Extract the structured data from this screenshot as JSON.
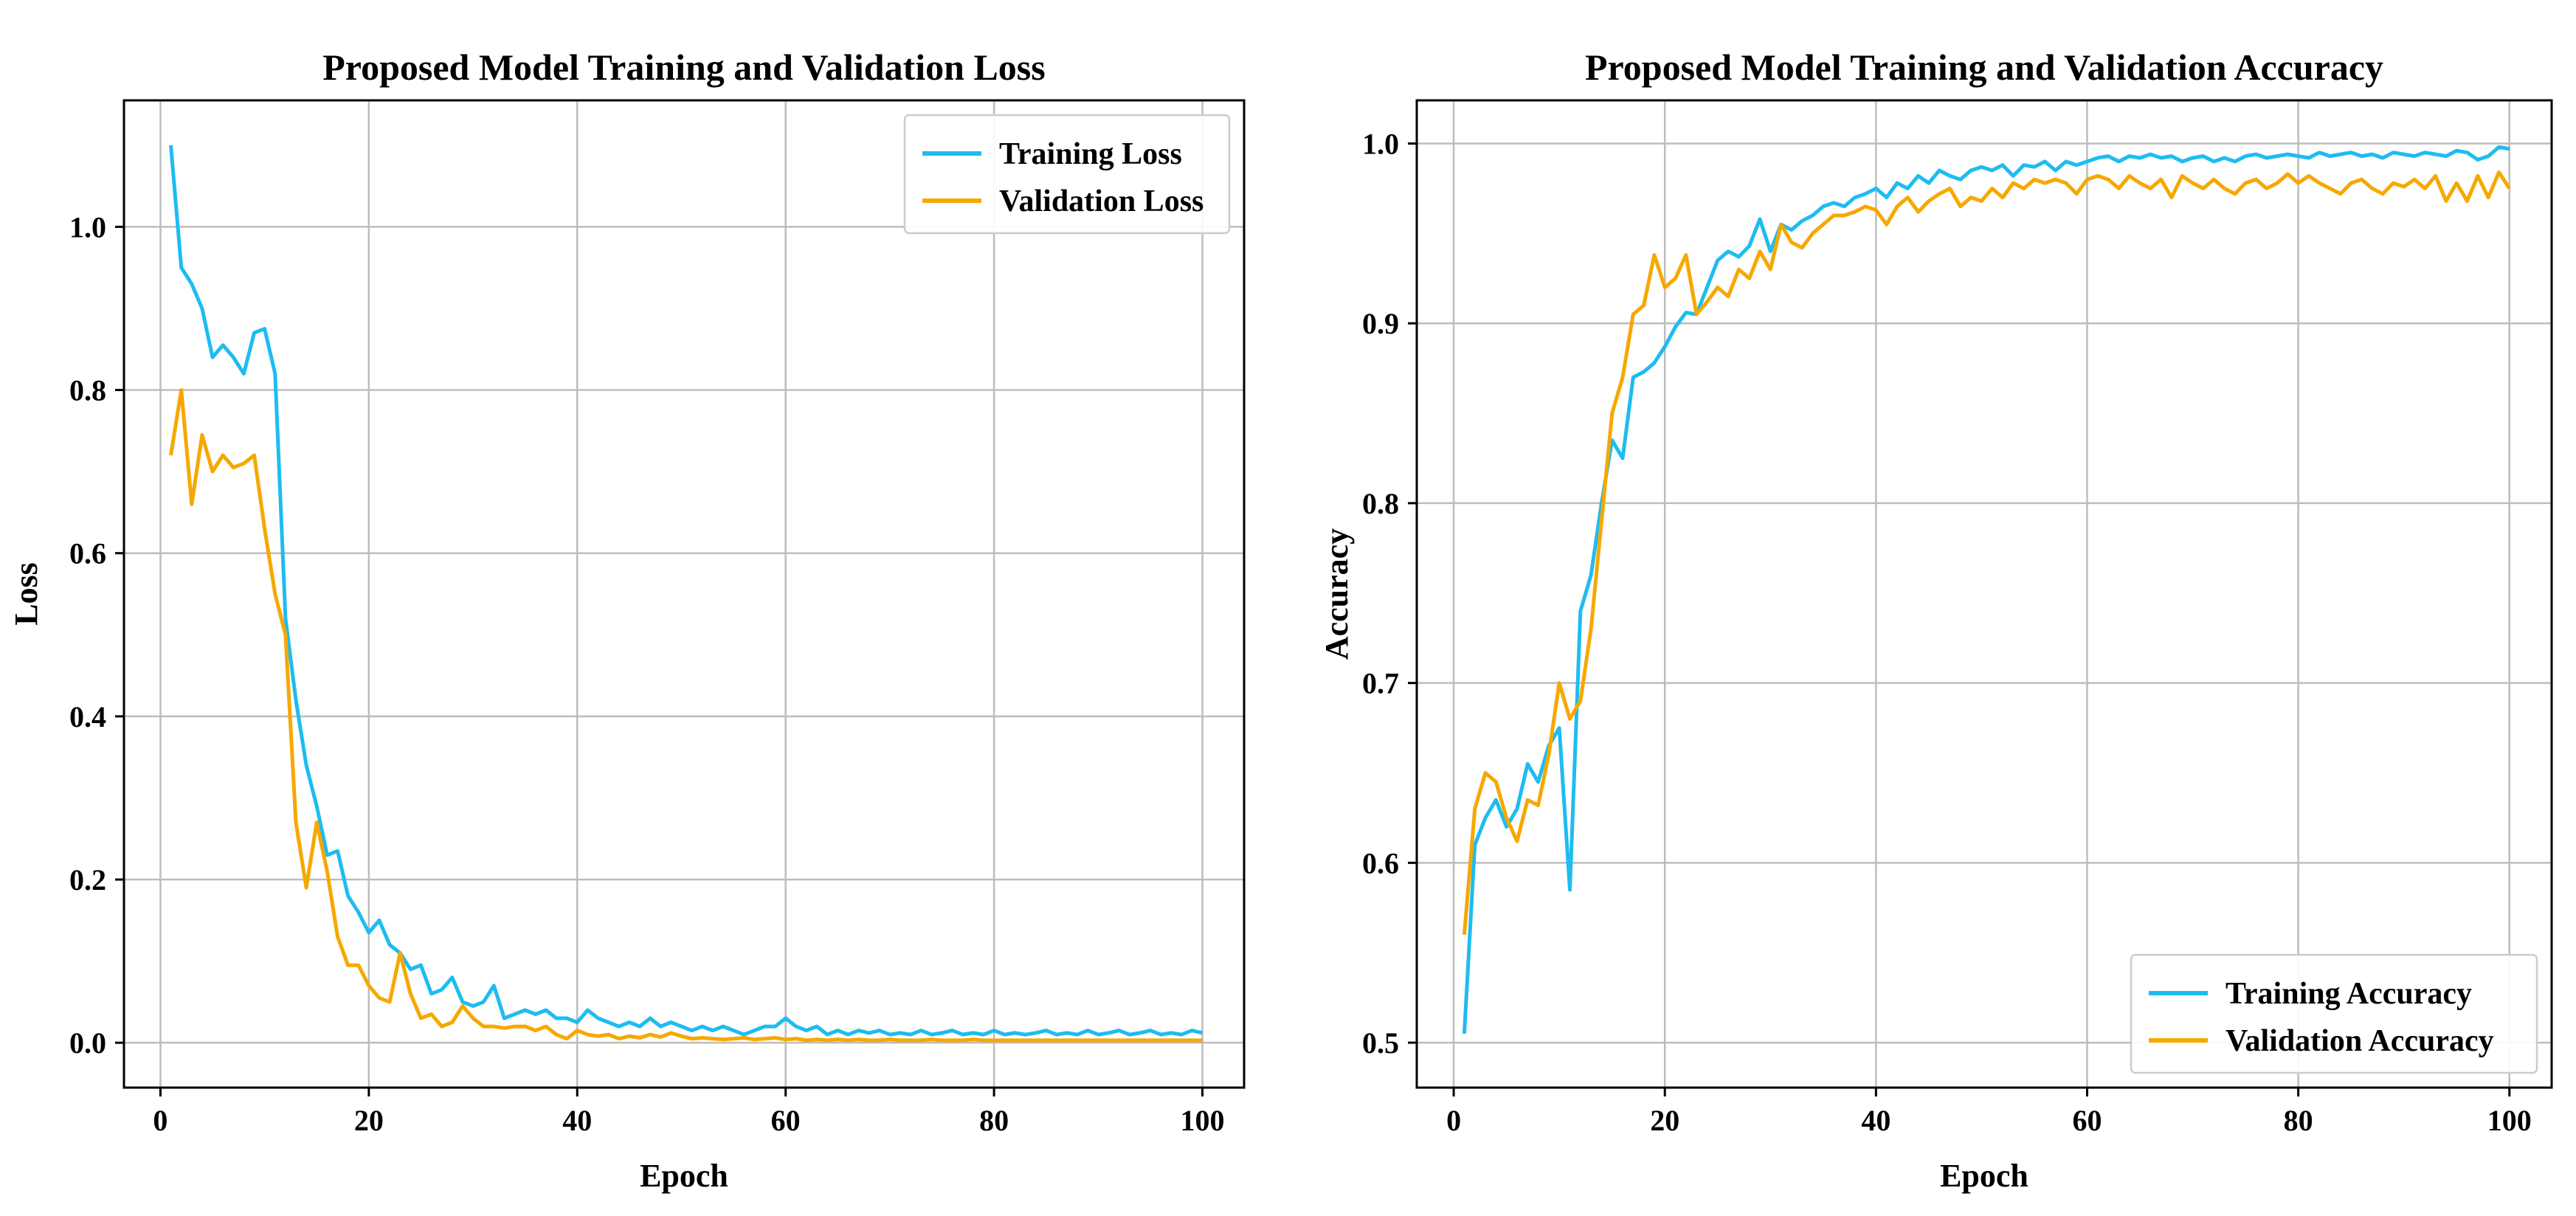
{
  "chart_data": [
    {
      "type": "line",
      "title": "Proposed Model Training and Validation Loss",
      "xlabel": "Epoch",
      "ylabel": "Loss",
      "xlim": [
        -3.5,
        104
      ],
      "ylim": [
        -0.055,
        1.155
      ],
      "grid": true,
      "legend_position": "top-right",
      "xticks": [
        0,
        20,
        40,
        60,
        80,
        100
      ],
      "xtick_labels": [
        "0",
        "20",
        "40",
        "60",
        "80",
        "100"
      ],
      "yticks": [
        0.0,
        0.2,
        0.4,
        0.6,
        0.8,
        1.0
      ],
      "ytick_labels": [
        "0.0",
        "0.2",
        "0.4",
        "0.6",
        "0.8",
        "1.0"
      ],
      "series": [
        {
          "name": "Training Loss",
          "color": "#1ebcf0",
          "x": [
            1,
            2,
            3,
            4,
            5,
            6,
            7,
            8,
            9,
            10,
            11,
            12,
            13,
            14,
            15,
            16,
            17,
            18,
            19,
            20,
            21,
            22,
            23,
            24,
            25,
            26,
            27,
            28,
            29,
            30,
            31,
            32,
            33,
            34,
            35,
            36,
            37,
            38,
            39,
            40,
            41,
            42,
            43,
            44,
            45,
            46,
            47,
            48,
            49,
            50,
            51,
            52,
            53,
            54,
            55,
            56,
            57,
            58,
            59,
            60,
            61,
            62,
            63,
            64,
            65,
            66,
            67,
            68,
            69,
            70,
            71,
            72,
            73,
            74,
            75,
            76,
            77,
            78,
            79,
            80,
            81,
            82,
            83,
            84,
            85,
            86,
            87,
            88,
            89,
            90,
            91,
            92,
            93,
            94,
            95,
            96,
            97,
            98,
            99,
            100
          ],
          "values": [
            1.1,
            0.95,
            0.93,
            0.9,
            0.84,
            0.855,
            0.84,
            0.82,
            0.87,
            0.875,
            0.82,
            0.52,
            0.42,
            0.34,
            0.29,
            0.23,
            0.235,
            0.18,
            0.16,
            0.135,
            0.15,
            0.12,
            0.11,
            0.09,
            0.095,
            0.06,
            0.065,
            0.08,
            0.05,
            0.045,
            0.05,
            0.07,
            0.03,
            0.035,
            0.04,
            0.035,
            0.04,
            0.03,
            0.03,
            0.025,
            0.04,
            0.03,
            0.025,
            0.02,
            0.025,
            0.02,
            0.03,
            0.02,
            0.025,
            0.02,
            0.015,
            0.02,
            0.015,
            0.02,
            0.015,
            0.01,
            0.015,
            0.02,
            0.02,
            0.03,
            0.02,
            0.015,
            0.02,
            0.01,
            0.015,
            0.01,
            0.015,
            0.012,
            0.015,
            0.01,
            0.012,
            0.01,
            0.015,
            0.01,
            0.012,
            0.015,
            0.01,
            0.012,
            0.01,
            0.015,
            0.01,
            0.012,
            0.01,
            0.012,
            0.015,
            0.01,
            0.012,
            0.01,
            0.015,
            0.01,
            0.012,
            0.015,
            0.01,
            0.012,
            0.015,
            0.01,
            0.012,
            0.01,
            0.015,
            0.012
          ]
        },
        {
          "name": "Validation Loss",
          "color": "#f6a800",
          "x": [
            1,
            2,
            3,
            4,
            5,
            6,
            7,
            8,
            9,
            10,
            11,
            12,
            13,
            14,
            15,
            16,
            17,
            18,
            19,
            20,
            21,
            22,
            23,
            24,
            25,
            26,
            27,
            28,
            29,
            30,
            31,
            32,
            33,
            34,
            35,
            36,
            37,
            38,
            39,
            40,
            41,
            42,
            43,
            44,
            45,
            46,
            47,
            48,
            49,
            50,
            51,
            52,
            53,
            54,
            55,
            56,
            57,
            58,
            59,
            60,
            61,
            62,
            63,
            64,
            65,
            66,
            67,
            68,
            69,
            70,
            71,
            72,
            73,
            74,
            75,
            76,
            77,
            78,
            79,
            80,
            81,
            82,
            83,
            84,
            85,
            86,
            87,
            88,
            89,
            90,
            91,
            92,
            93,
            94,
            95,
            96,
            97,
            98,
            99,
            100
          ],
          "values": [
            0.72,
            0.8,
            0.66,
            0.745,
            0.7,
            0.72,
            0.705,
            0.71,
            0.72,
            0.63,
            0.55,
            0.5,
            0.27,
            0.19,
            0.27,
            0.21,
            0.13,
            0.095,
            0.095,
            0.07,
            0.055,
            0.05,
            0.11,
            0.06,
            0.03,
            0.035,
            0.02,
            0.025,
            0.045,
            0.03,
            0.02,
            0.02,
            0.018,
            0.02,
            0.02,
            0.015,
            0.02,
            0.01,
            0.005,
            0.015,
            0.01,
            0.008,
            0.01,
            0.005,
            0.008,
            0.006,
            0.01,
            0.007,
            0.012,
            0.008,
            0.005,
            0.006,
            0.005,
            0.004,
            0.005,
            0.006,
            0.004,
            0.005,
            0.006,
            0.004,
            0.005,
            0.003,
            0.004,
            0.003,
            0.004,
            0.003,
            0.004,
            0.003,
            0.003,
            0.004,
            0.003,
            0.003,
            0.003,
            0.004,
            0.003,
            0.003,
            0.003,
            0.004,
            0.003,
            0.003,
            0.003,
            0.003,
            0.003,
            0.003,
            0.003,
            0.003,
            0.003,
            0.003,
            0.003,
            0.003,
            0.003,
            0.003,
            0.003,
            0.003,
            0.003,
            0.003,
            0.003,
            0.003,
            0.003,
            0.003
          ]
        }
      ]
    },
    {
      "type": "line",
      "title": "Proposed Model Training and Validation Accuracy",
      "xlabel": "Epoch",
      "ylabel": "Accuracy",
      "xlim": [
        -3.5,
        104
      ],
      "ylim": [
        0.475,
        1.024
      ],
      "grid": true,
      "legend_position": "bottom-right",
      "xticks": [
        0,
        20,
        40,
        60,
        80,
        100
      ],
      "xtick_labels": [
        "0",
        "20",
        "40",
        "60",
        "80",
        "100"
      ],
      "yticks": [
        0.5,
        0.6,
        0.7,
        0.8,
        0.9,
        1.0
      ],
      "ytick_labels": [
        "0.5",
        "0.6",
        "0.7",
        "0.8",
        "0.9",
        "1.0"
      ],
      "series": [
        {
          "name": "Training Accuracy",
          "color": "#1ebcf0",
          "x": [
            1,
            2,
            3,
            4,
            5,
            6,
            7,
            8,
            9,
            10,
            11,
            12,
            13,
            14,
            15,
            16,
            17,
            18,
            19,
            20,
            21,
            22,
            23,
            24,
            25,
            26,
            27,
            28,
            29,
            30,
            31,
            32,
            33,
            34,
            35,
            36,
            37,
            38,
            39,
            40,
            41,
            42,
            43,
            44,
            45,
            46,
            47,
            48,
            49,
            50,
            51,
            52,
            53,
            54,
            55,
            56,
            57,
            58,
            59,
            60,
            61,
            62,
            63,
            64,
            65,
            66,
            67,
            68,
            69,
            70,
            71,
            72,
            73,
            74,
            75,
            76,
            77,
            78,
            79,
            80,
            81,
            82,
            83,
            84,
            85,
            86,
            87,
            88,
            89,
            90,
            91,
            92,
            93,
            94,
            95,
            96,
            97,
            98,
            99,
            100
          ],
          "values": [
            0.505,
            0.61,
            0.625,
            0.635,
            0.62,
            0.63,
            0.655,
            0.645,
            0.665,
            0.675,
            0.585,
            0.74,
            0.76,
            0.8,
            0.835,
            0.825,
            0.87,
            0.873,
            0.878,
            0.887,
            0.898,
            0.906,
            0.905,
            0.92,
            0.935,
            0.94,
            0.937,
            0.943,
            0.958,
            0.94,
            0.955,
            0.952,
            0.957,
            0.96,
            0.965,
            0.967,
            0.965,
            0.97,
            0.972,
            0.975,
            0.97,
            0.978,
            0.975,
            0.982,
            0.978,
            0.985,
            0.982,
            0.98,
            0.985,
            0.987,
            0.985,
            0.988,
            0.982,
            0.988,
            0.987,
            0.99,
            0.985,
            0.99,
            0.988,
            0.99,
            0.992,
            0.993,
            0.99,
            0.993,
            0.992,
            0.994,
            0.992,
            0.993,
            0.99,
            0.992,
            0.993,
            0.99,
            0.992,
            0.99,
            0.993,
            0.994,
            0.992,
            0.993,
            0.994,
            0.993,
            0.992,
            0.995,
            0.993,
            0.994,
            0.995,
            0.993,
            0.994,
            0.992,
            0.995,
            0.994,
            0.993,
            0.995,
            0.994,
            0.993,
            0.996,
            0.995,
            0.991,
            0.993,
            0.998,
            0.997
          ]
        },
        {
          "name": "Validation Accuracy",
          "color": "#f6a800",
          "x": [
            1,
            2,
            3,
            4,
            5,
            6,
            7,
            8,
            9,
            10,
            11,
            12,
            13,
            14,
            15,
            16,
            17,
            18,
            19,
            20,
            21,
            22,
            23,
            24,
            25,
            26,
            27,
            28,
            29,
            30,
            31,
            32,
            33,
            34,
            35,
            36,
            37,
            38,
            39,
            40,
            41,
            42,
            43,
            44,
            45,
            46,
            47,
            48,
            49,
            50,
            51,
            52,
            53,
            54,
            55,
            56,
            57,
            58,
            59,
            60,
            61,
            62,
            63,
            64,
            65,
            66,
            67,
            68,
            69,
            70,
            71,
            72,
            73,
            74,
            75,
            76,
            77,
            78,
            79,
            80,
            81,
            82,
            83,
            84,
            85,
            86,
            87,
            88,
            89,
            90,
            91,
            92,
            93,
            94,
            95,
            96,
            97,
            98,
            99,
            100
          ],
          "values": [
            0.56,
            0.63,
            0.65,
            0.645,
            0.625,
            0.612,
            0.635,
            0.632,
            0.66,
            0.7,
            0.68,
            0.69,
            0.73,
            0.79,
            0.85,
            0.87,
            0.905,
            0.91,
            0.938,
            0.92,
            0.925,
            0.938,
            0.905,
            0.912,
            0.92,
            0.915,
            0.93,
            0.925,
            0.94,
            0.93,
            0.955,
            0.945,
            0.942,
            0.95,
            0.955,
            0.96,
            0.96,
            0.962,
            0.965,
            0.963,
            0.955,
            0.965,
            0.97,
            0.962,
            0.968,
            0.972,
            0.975,
            0.965,
            0.97,
            0.968,
            0.975,
            0.97,
            0.978,
            0.975,
            0.98,
            0.978,
            0.98,
            0.978,
            0.972,
            0.98,
            0.982,
            0.98,
            0.975,
            0.982,
            0.978,
            0.975,
            0.98,
            0.97,
            0.982,
            0.978,
            0.975,
            0.98,
            0.975,
            0.972,
            0.978,
            0.98,
            0.975,
            0.978,
            0.983,
            0.978,
            0.982,
            0.978,
            0.975,
            0.972,
            0.978,
            0.98,
            0.975,
            0.972,
            0.978,
            0.976,
            0.98,
            0.975,
            0.982,
            0.968,
            0.978,
            0.968,
            0.982,
            0.97,
            0.984,
            0.975
          ]
        }
      ]
    }
  ]
}
